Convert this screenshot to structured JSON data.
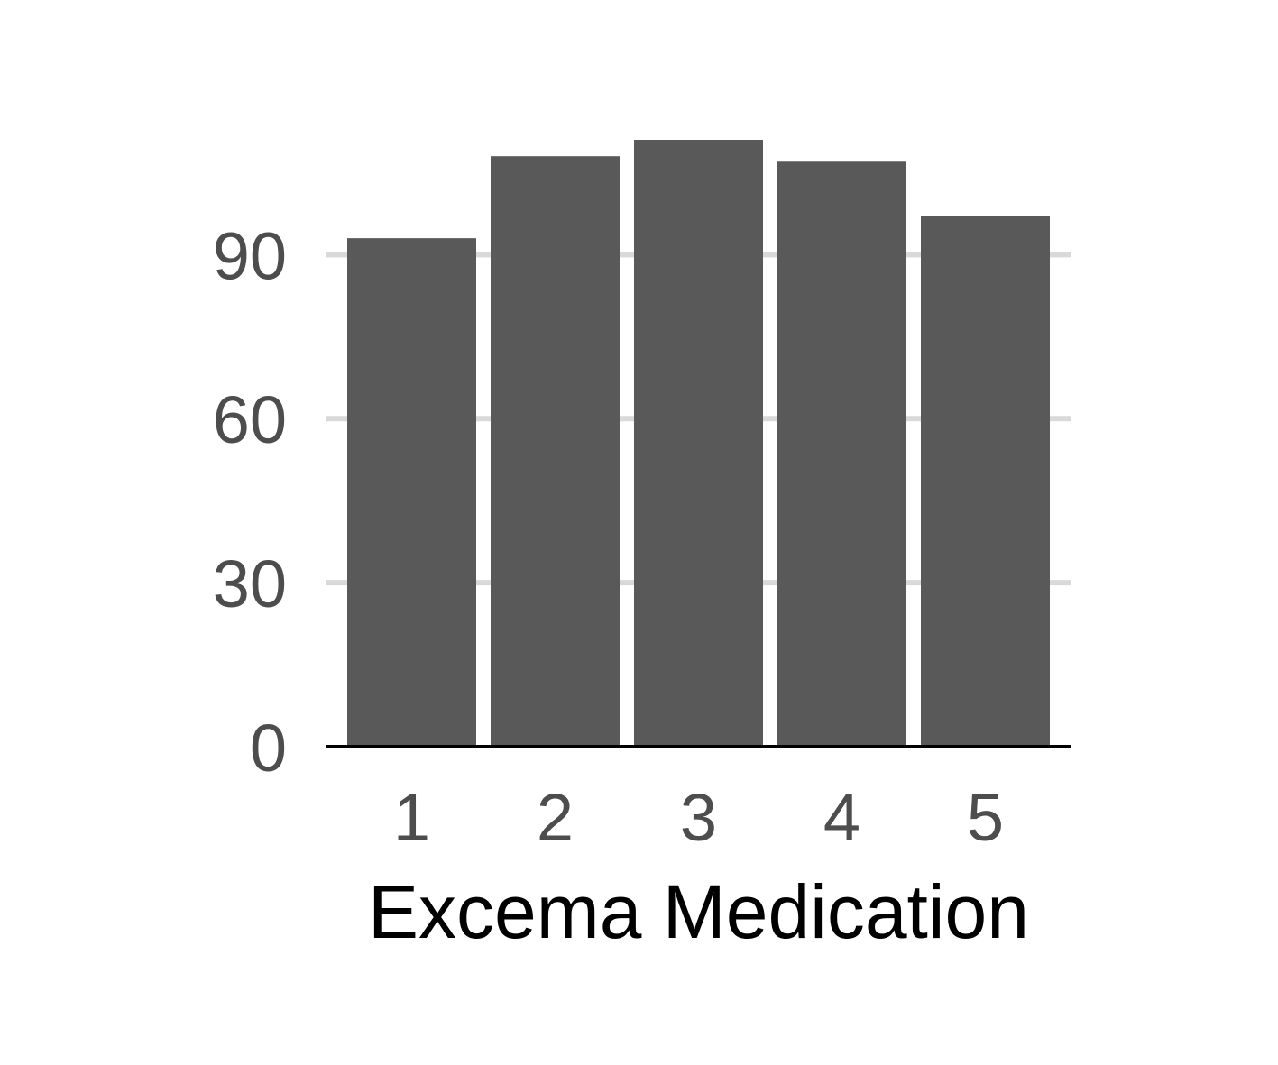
{
  "chart_data": {
    "type": "bar",
    "categories": [
      "1",
      "2",
      "3",
      "4",
      "5"
    ],
    "values": [
      93,
      108,
      111,
      107,
      97
    ],
    "title": "",
    "xlabel": "Excema Medication",
    "ylabel": "",
    "ylim": [
      0,
      111
    ],
    "yticks": [
      0,
      30,
      60,
      90
    ],
    "grid": "horizontal",
    "colors": {
      "bar": "#595959",
      "grid": "#d9d9d9",
      "axis": "#000000",
      "tick_text": "#4d4d4d",
      "title_text": "#000000"
    }
  }
}
